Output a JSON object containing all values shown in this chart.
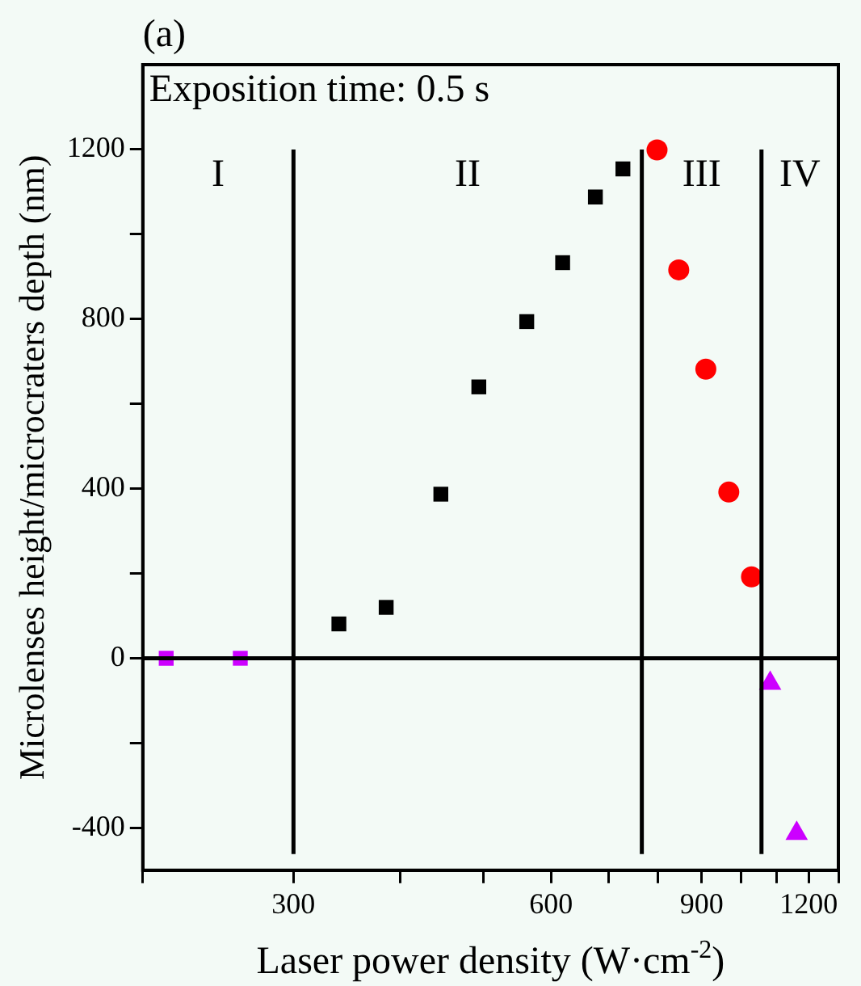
{
  "chart_data": {
    "type": "scatter",
    "title": "(a)",
    "xlabel": "Laser power density (W·cm$^{-2}$)",
    "ylabel": "Microlenses height/microcraters depth (nm)",
    "annotations": [
      "Exposition time: 0.5 s",
      "I",
      "II",
      "III",
      "IV"
    ],
    "series": [
      {
        "color": "#cc00ff",
        "marker": "square",
        "x": [
          213,
          260
        ],
        "values": [
          0,
          0
        ]
      },
      {
        "color": "#000000",
        "marker": "square",
        "x": [
          339,
          385,
          446,
          494,
          562,
          619,
          676,
          728
        ],
        "values": [
          81,
          120,
          387,
          640,
          794,
          933,
          1088,
          1154
        ]
      },
      {
        "color": "#ff0000",
        "marker": "circle",
        "x": [
          798,
          846,
          910,
          968,
          1029
        ],
        "values": [
          1199,
          916,
          682,
          392,
          192
        ]
      },
      {
        "color": "#cc00ff",
        "marker": "triangle",
        "x": [
          1082,
          1162
        ],
        "values": [
          -59,
          -413
        ]
      }
    ],
    "log": "x",
    "xlim": [
      200,
      1300
    ],
    "xticks": [
      {
        "value": 200,
        "label": null
      },
      300,
      {
        "value": 400,
        "label": null
      },
      {
        "value": 500,
        "label": null
      },
      600,
      {
        "value": 700,
        "label": null
      },
      {
        "value": 800,
        "label": null
      },
      900,
      {
        "value": 1000,
        "label": null
      },
      {
        "value": 1100,
        "label": null
      },
      1200,
      {
        "value": 1300,
        "label": null
      }
    ],
    "ylim": [
      -500,
      1400
    ],
    "yticks": [
      -400,
      {
        "value": -200,
        "label": null
      },
      0,
      {
        "value": 200,
        "label": null
      },
      400,
      {
        "value": 600,
        "label": null
      },
      800,
      {
        "value": 1000,
        "label": null
      },
      1200
    ],
    "ref_lines": [
      {
        "axis": "x",
        "value": 300,
        "color": "#000000"
      },
      {
        "axis": "x",
        "value": 766,
        "color": "#000000"
      },
      {
        "axis": "x",
        "value": 1057,
        "color": "#000000"
      },
      {
        "axis": "y",
        "value": 0,
        "color": "#000000"
      }
    ],
    "grid": false,
    "legend": false
  }
}
